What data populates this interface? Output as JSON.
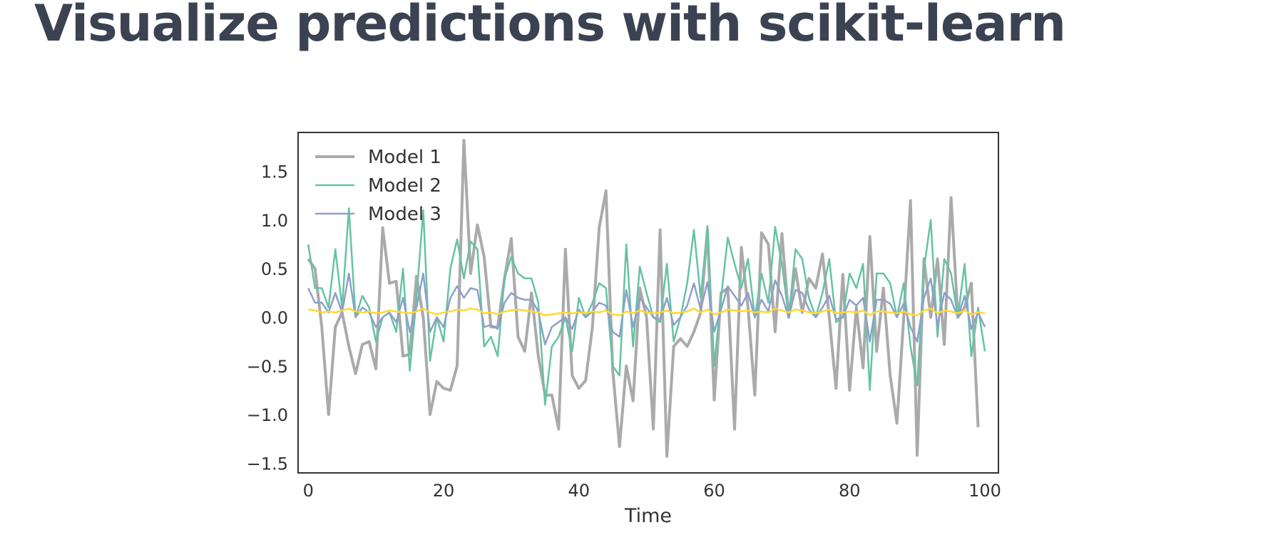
{
  "page": {
    "title": "Visualize predictions with scikit-learn"
  },
  "chart_data": {
    "type": "line",
    "xlabel": "Time",
    "ylabel": "",
    "xlim": [
      -1.5,
      102
    ],
    "ylim": [
      -1.6,
      1.9
    ],
    "xticks": [
      0,
      20,
      40,
      60,
      80,
      100
    ],
    "yticks": [
      -1.5,
      -1.0,
      -0.5,
      0.0,
      0.5,
      1.0,
      1.5
    ],
    "grid": false,
    "legend": "upper-left",
    "series": [
      {
        "name": "Model 1",
        "color": "#aaaaaa",
        "width": 4,
        "values": [
          0.6,
          0.5,
          -0.1,
          -1.0,
          -0.1,
          0.05,
          -0.3,
          -0.58,
          -0.28,
          -0.25,
          -0.53,
          0.92,
          0.35,
          0.37,
          -0.4,
          -0.38,
          0.42,
          0.0,
          -1.0,
          -0.66,
          -0.73,
          -0.75,
          -0.5,
          1.82,
          0.45,
          0.95,
          0.62,
          -0.1,
          -0.1,
          0.4,
          0.81,
          -0.2,
          -0.35,
          0.25,
          -0.4,
          -0.8,
          -0.8,
          -1.15,
          0.7,
          -0.6,
          -0.73,
          -0.65,
          -0.1,
          0.92,
          1.3,
          -0.55,
          -1.33,
          -0.5,
          -0.86,
          0.3,
          0.0,
          -1.15,
          0.9,
          -1.43,
          -0.3,
          -0.22,
          -0.3,
          -0.15,
          0.05,
          0.9,
          -0.85,
          0.25,
          0.3,
          -1.15,
          0.72,
          0.1,
          -0.8,
          0.87,
          0.75,
          -0.15,
          0.86,
          0.0,
          0.5,
          0.05,
          0.4,
          0.3,
          0.65,
          0.0,
          -0.73,
          0.44,
          -0.75,
          0.1,
          -0.52,
          0.83,
          -0.35,
          0.3,
          -0.6,
          -1.09,
          0.0,
          1.2,
          -1.42,
          0.6,
          0.0,
          0.6,
          -0.28,
          1.23,
          0.0,
          0.1,
          0.35,
          -1.13
        ]
      },
      {
        "name": "Model 2",
        "color": "#66c2a5",
        "width": 2.5,
        "values": [
          0.75,
          0.3,
          0.3,
          0.1,
          0.7,
          0.1,
          1.12,
          0.0,
          0.22,
          0.1,
          -0.25,
          0.0,
          0.05,
          -0.15,
          0.5,
          -0.55,
          0.2,
          1.1,
          -0.45,
          0.0,
          -0.25,
          0.5,
          0.8,
          0.4,
          0.78,
          0.7,
          -0.3,
          -0.2,
          -0.4,
          0.4,
          0.62,
          0.45,
          0.4,
          0.4,
          0.15,
          -0.9,
          -0.3,
          -0.2,
          0.0,
          -0.35,
          0.2,
          0.0,
          0.15,
          0.35,
          0.3,
          -0.5,
          -0.6,
          0.75,
          -0.3,
          0.52,
          0.25,
          0.0,
          -0.05,
          0.55,
          -0.25,
          0.0,
          0.35,
          0.9,
          0.2,
          0.94,
          -0.5,
          0.2,
          0.82,
          0.55,
          0.3,
          0.6,
          0.0,
          0.45,
          0.15,
          0.93,
          0.55,
          0.0,
          0.7,
          0.6,
          0.2,
          0.0,
          0.25,
          0.6,
          -0.05,
          0.0,
          0.45,
          0.3,
          0.55,
          -0.75,
          0.45,
          0.45,
          0.35,
          0.0,
          0.35,
          -0.3,
          -0.7,
          0.5,
          1.0,
          -0.2,
          0.6,
          0.45,
          0.0,
          0.55,
          -0.4,
          0.1,
          -0.35
        ]
      },
      {
        "name": "Model 3",
        "color": "#8da0cb",
        "width": 2.5,
        "values": [
          0.3,
          0.15,
          0.15,
          0.05,
          0.25,
          0.05,
          0.45,
          0.0,
          0.1,
          0.05,
          -0.1,
          0.0,
          0.05,
          -0.05,
          0.2,
          -0.15,
          0.1,
          0.45,
          -0.15,
          0.0,
          -0.1,
          0.2,
          0.32,
          0.2,
          0.3,
          0.28,
          -0.1,
          -0.08,
          -0.12,
          0.15,
          0.25,
          0.2,
          0.18,
          0.18,
          0.06,
          -0.28,
          -0.1,
          -0.05,
          0.0,
          -0.12,
          0.08,
          0.0,
          0.06,
          0.15,
          0.12,
          -0.15,
          -0.2,
          0.28,
          -0.1,
          0.2,
          0.1,
          0.0,
          -0.02,
          0.2,
          -0.08,
          0.0,
          0.12,
          0.35,
          0.08,
          0.36,
          -0.15,
          0.08,
          0.32,
          0.22,
          0.12,
          0.25,
          0.0,
          0.18,
          0.06,
          0.38,
          0.22,
          0.0,
          0.28,
          0.25,
          0.08,
          0.0,
          0.1,
          0.22,
          -0.02,
          0.0,
          0.18,
          0.12,
          0.2,
          -0.25,
          0.18,
          0.18,
          0.14,
          0.0,
          0.14,
          -0.1,
          -0.25,
          0.2,
          0.4,
          -0.08,
          0.25,
          0.18,
          0.0,
          0.22,
          -0.12,
          0.05,
          -0.1
        ]
      },
      {
        "name": "",
        "color": "#ffd92f",
        "width": 2.5,
        "values": [
          0.08,
          0.07,
          0.05,
          0.06,
          0.05,
          0.07,
          0.09,
          0.06,
          0.05,
          0.06,
          0.04,
          0.05,
          0.07,
          0.06,
          0.05,
          0.04,
          0.06,
          0.09,
          0.05,
          0.03,
          0.05,
          0.06,
          0.08,
          0.07,
          0.09,
          0.08,
          0.04,
          0.05,
          0.03,
          0.06,
          0.07,
          0.08,
          0.07,
          0.06,
          0.05,
          0.02,
          0.03,
          0.04,
          0.05,
          0.04,
          0.05,
          0.04,
          0.06,
          0.05,
          0.07,
          0.03,
          0.02,
          0.06,
          0.04,
          0.07,
          0.05,
          0.04,
          0.05,
          0.07,
          0.04,
          0.05,
          0.06,
          0.09,
          0.05,
          0.08,
          0.03,
          0.05,
          0.08,
          0.07,
          0.06,
          0.07,
          0.05,
          0.06,
          0.05,
          0.09,
          0.07,
          0.05,
          0.08,
          0.07,
          0.05,
          0.04,
          0.06,
          0.08,
          0.04,
          0.05,
          0.06,
          0.05,
          0.07,
          0.02,
          0.06,
          0.06,
          0.05,
          0.04,
          0.06,
          0.03,
          0.02,
          0.07,
          0.09,
          0.04,
          0.07,
          0.06,
          0.04,
          0.07,
          0.03,
          0.05,
          0.04
        ]
      }
    ]
  }
}
